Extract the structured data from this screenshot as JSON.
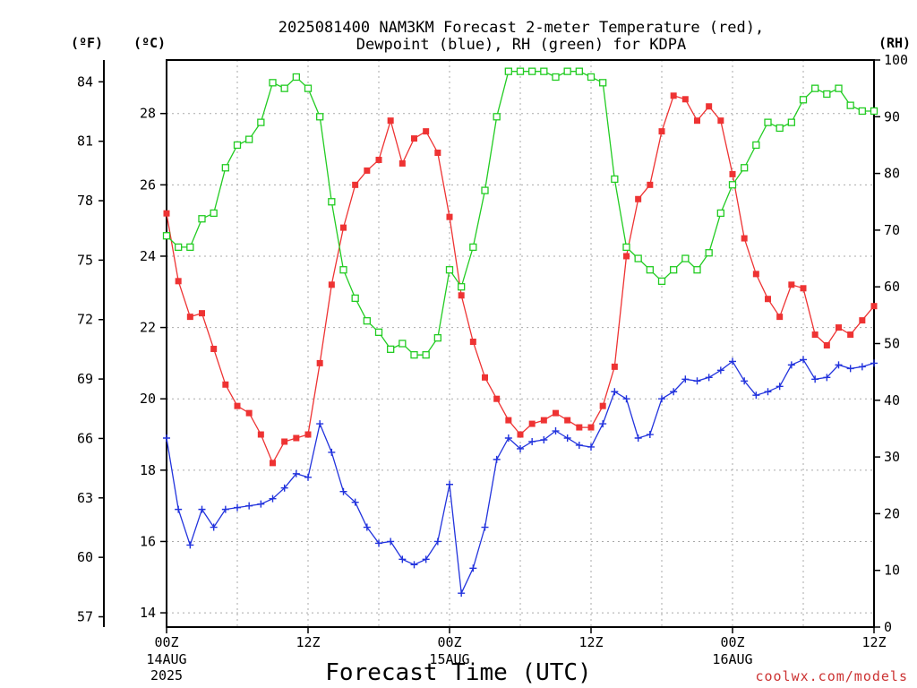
{
  "chart_data": {
    "type": "line",
    "title_line1": "2025081400 NAM3KM Forecast 2-meter Temperature (red),",
    "title_line2": "Dewpoint (blue), RH (green) for KDPA",
    "xlabel": "Forecast Time (UTC)",
    "credit": "coolwx.com/models",
    "units": {
      "fahrenheit": "(ºF)",
      "celsius": "(ºC)",
      "rh": "(RH)"
    },
    "x_range_hours": [
      0,
      60
    ],
    "celsius_range": [
      13.6,
      29.5
    ],
    "rh_range": [
      0,
      100
    ],
    "grid": true,
    "x_ticks": [
      {
        "hour": 0,
        "label": "00Z",
        "sub1": "14AUG",
        "sub2": "2025"
      },
      {
        "hour": 12,
        "label": "12Z",
        "sub1": "",
        "sub2": ""
      },
      {
        "hour": 24,
        "label": "00Z",
        "sub1": "15AUG",
        "sub2": ""
      },
      {
        "hour": 36,
        "label": "12Z",
        "sub1": "",
        "sub2": ""
      },
      {
        "hour": 48,
        "label": "00Z",
        "sub1": "16AUG",
        "sub2": ""
      },
      {
        "hour": 60,
        "label": "12Z",
        "sub1": "",
        "sub2": ""
      }
    ],
    "celsius_ticks": [
      "14",
      "16",
      "18",
      "20",
      "22",
      "24",
      "26",
      "28"
    ],
    "fahrenheit_ticks": [
      "57",
      "60",
      "63",
      "66",
      "69",
      "72",
      "75",
      "78",
      "81",
      "84"
    ],
    "rh_ticks": [
      "0",
      "10",
      "20",
      "30",
      "40",
      "50",
      "60",
      "70",
      "80",
      "90",
      "100"
    ],
    "series": [
      {
        "color": "#ee3333",
        "marker": "filled-square",
        "values": [
          25.2,
          23.3,
          22.3,
          22.4,
          21.4,
          20.4,
          19.8,
          19.6,
          19.0,
          18.2,
          18.8,
          18.9,
          19.0,
          21.0,
          23.2,
          24.8,
          26.0,
          26.4,
          26.7,
          27.8,
          26.6,
          27.3,
          27.5,
          26.9,
          25.1,
          22.9,
          21.6,
          20.6,
          20.0,
          19.4,
          19.0,
          19.3,
          19.4,
          19.6,
          19.4,
          19.2,
          19.2,
          19.8,
          20.9,
          24.0,
          25.6,
          26.0,
          27.5,
          28.5,
          28.4,
          27.8,
          28.2,
          27.8,
          26.3,
          24.5,
          23.5,
          22.8,
          22.3,
          23.2,
          23.1,
          21.8,
          21.5,
          22.0,
          21.8,
          22.2,
          22.6
        ]
      },
      {
        "color": "#2233dd",
        "marker": "plus",
        "values": [
          18.9,
          16.9,
          15.9,
          16.9,
          16.4,
          16.9,
          16.95,
          17.0,
          17.05,
          17.2,
          17.5,
          17.9,
          17.8,
          19.3,
          18.5,
          17.4,
          17.1,
          16.4,
          15.95,
          16.0,
          15.5,
          15.35,
          15.5,
          16.0,
          17.6,
          14.55,
          15.25,
          16.4,
          18.3,
          18.9,
          18.6,
          18.8,
          18.85,
          19.1,
          18.9,
          18.7,
          18.65,
          19.3,
          20.2,
          20.0,
          18.9,
          19.0,
          20.0,
          20.2,
          20.55,
          20.5,
          20.6,
          20.8,
          21.05,
          20.5,
          20.1,
          20.2,
          20.35,
          20.95,
          21.1,
          20.55,
          20.6,
          20.95,
          20.85,
          20.9,
          21.0
        ]
      },
      {
        "color": "#22cc22",
        "marker": "open-square",
        "values": [
          69,
          67,
          67,
          72,
          73,
          81,
          85,
          86,
          89,
          96,
          95,
          97,
          95,
          90,
          75,
          63,
          58,
          54,
          52,
          49,
          50,
          48,
          48,
          51,
          63,
          60,
          67,
          77,
          90,
          98,
          98,
          98,
          98,
          97,
          98,
          98,
          97,
          96,
          79,
          67,
          65,
          63,
          61,
          63,
          65,
          63,
          66,
          73,
          78,
          81,
          85,
          89,
          88,
          89,
          93,
          95,
          94,
          95,
          92,
          91,
          91
        ]
      }
    ]
  }
}
